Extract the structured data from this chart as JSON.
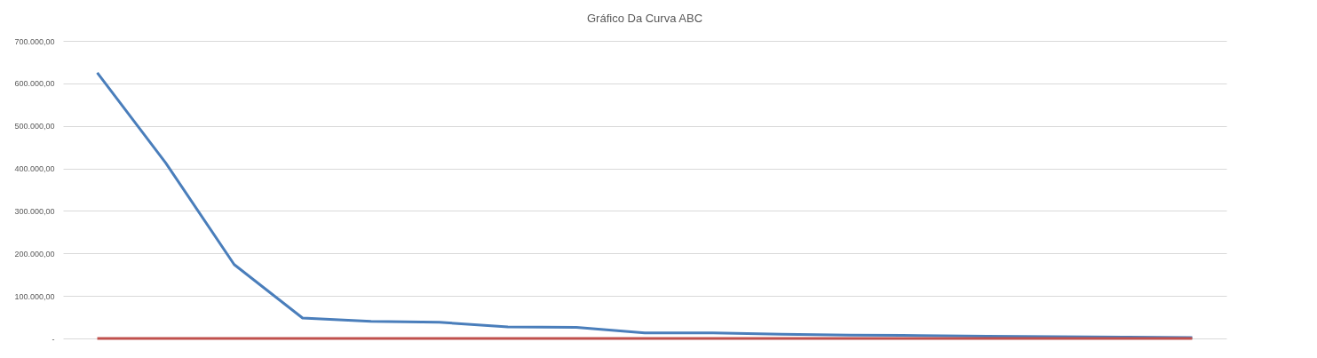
{
  "chart_data": {
    "type": "line",
    "title": "Gráfico Da Curva ABC",
    "categories": [
      null,
      null,
      null,
      null,
      null,
      null,
      null,
      null,
      null,
      null,
      null,
      null,
      null,
      null,
      null,
      null,
      null
    ],
    "series": [
      {
        "color": "#4a7ebb",
        "values": [
          625000,
          413000,
          174000,
          48000,
          40000,
          38000,
          27000,
          26000,
          13000,
          13000,
          10000,
          8000,
          7000,
          5000,
          4000,
          3000,
          2000
        ]
      },
      {
        "color": "#c0504d",
        "values": [
          0,
          0,
          0,
          0,
          0,
          0,
          0,
          0,
          0,
          0,
          0,
          0,
          0,
          0,
          0,
          0,
          0
        ]
      }
    ],
    "ylim": [
      0,
      700000
    ],
    "yticks": [
      {
        "value": 0,
        "label": "-"
      },
      {
        "value": 100000,
        "label": "100.000,00"
      },
      {
        "value": 200000,
        "label": "200.000,00"
      },
      {
        "value": 300000,
        "label": "300.000,00"
      },
      {
        "value": 400000,
        "label": "400.000,00"
      },
      {
        "value": 500000,
        "label": "500.000,00"
      },
      {
        "value": 600000,
        "label": "600.000,00"
      },
      {
        "value": 700000,
        "label": "700.000,00"
      }
    ],
    "grid": "y",
    "marker": "none",
    "line_style": "solid",
    "tick_labels": "y"
  }
}
